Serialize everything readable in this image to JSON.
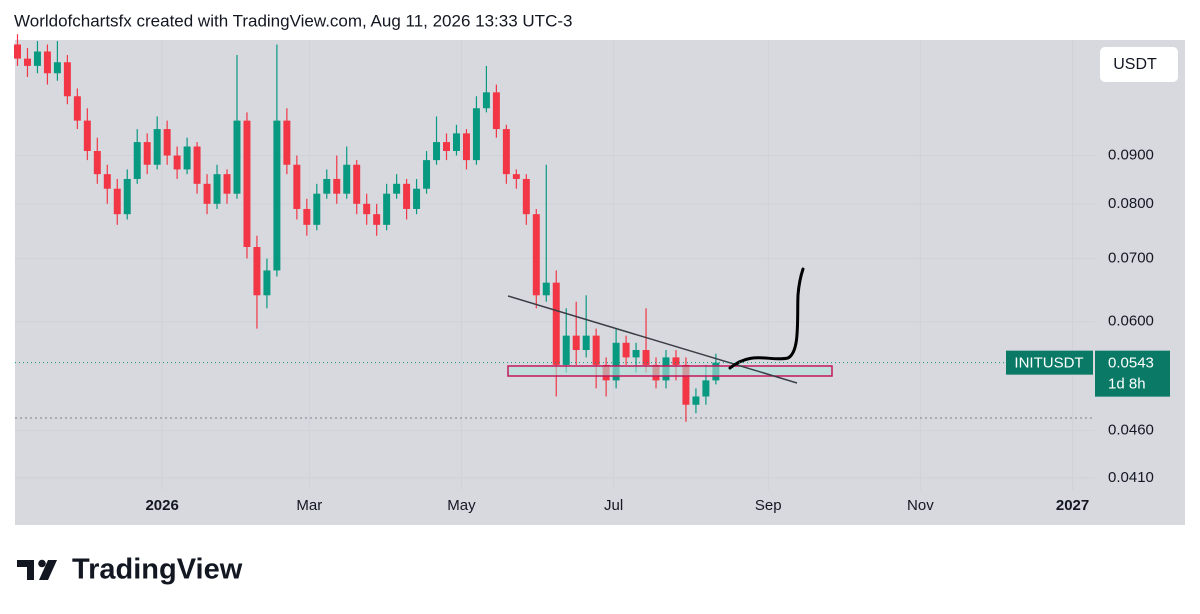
{
  "header": {
    "attribution": "Worldofchartsfx created with TradingView.com, Aug 11, 2026 13:33 UTC-3"
  },
  "footer": {
    "brand": "TradingView"
  },
  "chart_data": {
    "type": "candlestick",
    "symbol": "INITUSDT",
    "currency": "USDT",
    "countdown": "1d 8h",
    "up_color": "#089981",
    "down_color": "#f23645",
    "log_scale": true,
    "grid": true,
    "x": [
      -58,
      -54,
      -50,
      -46,
      -42,
      -38,
      -34,
      -30,
      -26,
      -22,
      -18,
      -14,
      -10,
      -6,
      -2,
      2,
      6,
      10,
      14,
      18,
      22,
      26,
      30,
      34,
      38,
      42,
      46,
      50,
      54,
      58,
      62,
      66,
      70,
      74,
      78,
      82,
      86,
      90,
      94,
      98,
      102,
      106,
      110,
      114,
      118,
      122,
      126,
      130,
      134,
      138,
      142,
      146,
      150,
      154,
      158,
      162,
      166,
      170,
      174,
      178,
      182,
      186,
      190,
      194,
      198,
      202,
      206,
      210,
      214,
      218,
      222
    ],
    "open": [
      0.118,
      0.114,
      0.112,
      0.116,
      0.11,
      0.113,
      0.104,
      0.098,
      0.091,
      0.086,
      0.083,
      0.078,
      0.085,
      0.093,
      0.088,
      0.096,
      0.09,
      0.087,
      0.092,
      0.084,
      0.08,
      0.086,
      0.082,
      0.098,
      0.072,
      0.064,
      0.068,
      0.098,
      0.088,
      0.079,
      0.076,
      0.082,
      0.085,
      0.082,
      0.088,
      0.08,
      0.078,
      0.076,
      0.082,
      0.084,
      0.079,
      0.083,
      0.089,
      0.093,
      0.091,
      0.095,
      0.089,
      0.101,
      0.105,
      0.096,
      0.086,
      0.085,
      0.078,
      0.064,
      0.066,
      0.054,
      0.058,
      0.056,
      0.058,
      0.054,
      0.052,
      0.057,
      0.055,
      0.056,
      0.054,
      0.052,
      0.055,
      0.054,
      0.049,
      0.05,
      0.052
    ],
    "high": [
      0.121,
      0.117,
      0.119,
      0.118,
      0.119,
      0.115,
      0.106,
      0.101,
      0.094,
      0.088,
      0.085,
      0.087,
      0.096,
      0.095,
      0.099,
      0.098,
      0.092,
      0.094,
      0.093,
      0.086,
      0.088,
      0.087,
      0.115,
      0.1,
      0.074,
      0.07,
      0.118,
      0.101,
      0.09,
      0.081,
      0.084,
      0.087,
      0.09,
      0.092,
      0.089,
      0.082,
      0.08,
      0.084,
      0.086,
      0.085,
      0.085,
      0.091,
      0.099,
      0.095,
      0.097,
      0.096,
      0.104,
      0.112,
      0.107,
      0.097,
      0.087,
      0.086,
      0.079,
      0.088,
      0.068,
      0.062,
      0.063,
      0.064,
      0.059,
      0.055,
      0.059,
      0.058,
      0.057,
      0.062,
      0.055,
      0.056,
      0.056,
      0.055,
      0.051,
      0.054,
      0.0555
    ],
    "low": [
      0.112,
      0.109,
      0.11,
      0.107,
      0.108,
      0.102,
      0.096,
      0.089,
      0.084,
      0.08,
      0.076,
      0.077,
      0.084,
      0.086,
      0.087,
      0.088,
      0.085,
      0.086,
      0.082,
      0.078,
      0.079,
      0.08,
      0.081,
      0.07,
      0.059,
      0.062,
      0.067,
      0.086,
      0.077,
      0.074,
      0.075,
      0.081,
      0.08,
      0.081,
      0.078,
      0.076,
      0.074,
      0.075,
      0.081,
      0.077,
      0.078,
      0.082,
      0.088,
      0.089,
      0.09,
      0.087,
      0.088,
      0.1,
      0.094,
      0.084,
      0.083,
      0.076,
      0.062,
      0.063,
      0.05,
      0.053,
      0.054,
      0.055,
      0.051,
      0.05,
      0.051,
      0.054,
      0.053,
      0.053,
      0.051,
      0.051,
      0.052,
      0.047,
      0.048,
      0.049,
      0.0515
    ],
    "close": [
      0.114,
      0.112,
      0.116,
      0.11,
      0.113,
      0.104,
      0.098,
      0.091,
      0.086,
      0.083,
      0.078,
      0.085,
      0.093,
      0.088,
      0.096,
      0.09,
      0.087,
      0.092,
      0.084,
      0.08,
      0.086,
      0.082,
      0.098,
      0.072,
      0.064,
      0.068,
      0.098,
      0.088,
      0.079,
      0.076,
      0.082,
      0.085,
      0.082,
      0.088,
      0.08,
      0.078,
      0.076,
      0.082,
      0.084,
      0.079,
      0.083,
      0.089,
      0.093,
      0.091,
      0.095,
      0.089,
      0.101,
      0.105,
      0.096,
      0.086,
      0.085,
      0.078,
      0.064,
      0.066,
      0.054,
      0.058,
      0.056,
      0.058,
      0.054,
      0.052,
      0.057,
      0.055,
      0.056,
      0.054,
      0.052,
      0.055,
      0.054,
      0.049,
      0.05,
      0.052,
      0.0543
    ],
    "xlim": [
      -59,
      374
    ],
    "xticks": [
      {
        "value": 0,
        "label": "2026"
      },
      {
        "value": 59,
        "label": "Mar"
      },
      {
        "value": 120,
        "label": "May"
      },
      {
        "value": 181,
        "label": "Jul"
      },
      {
        "value": 243,
        "label": "Sep"
      },
      {
        "value": 304,
        "label": "Nov"
      },
      {
        "value": 365,
        "label": "2027"
      }
    ],
    "ylim": [
      0.0398,
      0.1193
    ],
    "yticks": [
      {
        "value": 0.041,
        "label": "0.0410"
      },
      {
        "value": 0.046,
        "label": "0.0460"
      },
      {
        "value": 0.06,
        "label": "0.0600"
      },
      {
        "value": 0.07,
        "label": "0.0700"
      },
      {
        "value": 0.08,
        "label": "0.0800"
      },
      {
        "value": 0.09,
        "label": "0.0900"
      }
    ]
  }
}
